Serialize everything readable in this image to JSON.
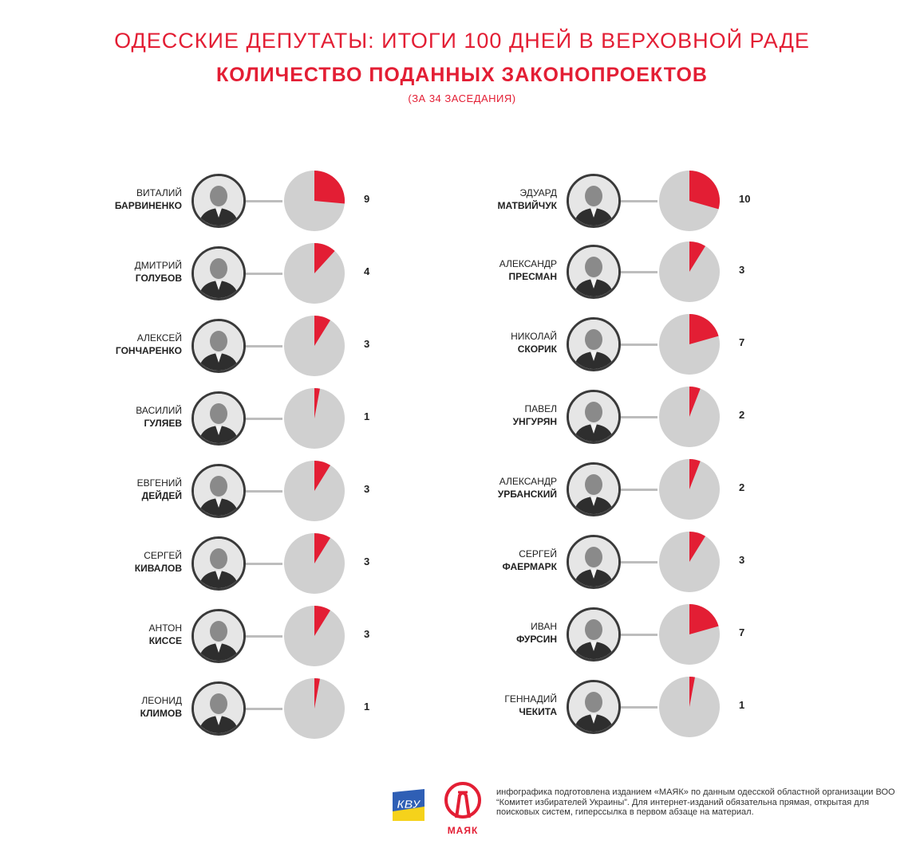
{
  "header": {
    "title": "ОДЕССКИЕ ДЕПУТАТЫ: ИТОГИ 100 ДНЕЙ В ВЕРХОВНОЙ РАДЕ",
    "subtitle": "КОЛИЧЕСТВО ПОДАННЫХ ЗАКОНОПРОЕКТОВ",
    "note": "(ЗА 34 ЗАСЕДАНИЯ)"
  },
  "colors": {
    "accent": "#e31e34",
    "pie_base": "#d0d0d0",
    "connector": "#bdbdbd"
  },
  "chart_data": {
    "type": "pie",
    "total": 34,
    "left_column": [
      {
        "first": "ВИТАЛИЙ",
        "last": "БАРВИНЕНКО",
        "value": 9
      },
      {
        "first": "ДМИТРИЙ",
        "last": "ГОЛУБОВ",
        "value": 4
      },
      {
        "first": "АЛЕКСЕЙ",
        "last": "ГОНЧАРЕНКО",
        "value": 3
      },
      {
        "first": "ВАСИЛИЙ",
        "last": "ГУЛЯЕВ",
        "value": 1
      },
      {
        "first": "ЕВГЕНИЙ",
        "last": "ДЕЙДЕЙ",
        "value": 3
      },
      {
        "first": "СЕРГЕЙ",
        "last": "КИВАЛОВ",
        "value": 3
      },
      {
        "first": "АНТОН",
        "last": "КИССЕ",
        "value": 3
      },
      {
        "first": "ЛЕОНИД",
        "last": "КЛИМОВ",
        "value": 1
      }
    ],
    "right_column": [
      {
        "first": "ЭДУАРД",
        "last": "МАТВИЙЧУК",
        "value": 10
      },
      {
        "first": "АЛЕКСАНДР",
        "last": "ПРЕСМАН",
        "value": 3
      },
      {
        "first": "НИКОЛАЙ",
        "last": "СКОРИК",
        "value": 7
      },
      {
        "first": "ПАВЕЛ",
        "last": "УНГУРЯН",
        "value": 2
      },
      {
        "first": "АЛЕКСАНДР",
        "last": "УРБАНСКИЙ",
        "value": 2
      },
      {
        "first": "СЕРГЕЙ",
        "last": "ФАЕРМАРК",
        "value": 3
      },
      {
        "first": "ИВАН",
        "last": "ФУРСИН",
        "value": 7
      },
      {
        "first": "ГЕННАДИЙ",
        "last": "ЧЕКИТА",
        "value": 1
      }
    ]
  },
  "footer": {
    "text": "инфографика подготовлена изданием «МАЯК» по данным одесской областной организации ВОО “Комитет избирателей Украины”. Для интернет-изданий обязательна прямая, открытая для поисковых систем, гиперссылка в первом абзаце на материал.",
    "logo_kiu": "КВУ",
    "logo_mayak": "МАЯК"
  }
}
